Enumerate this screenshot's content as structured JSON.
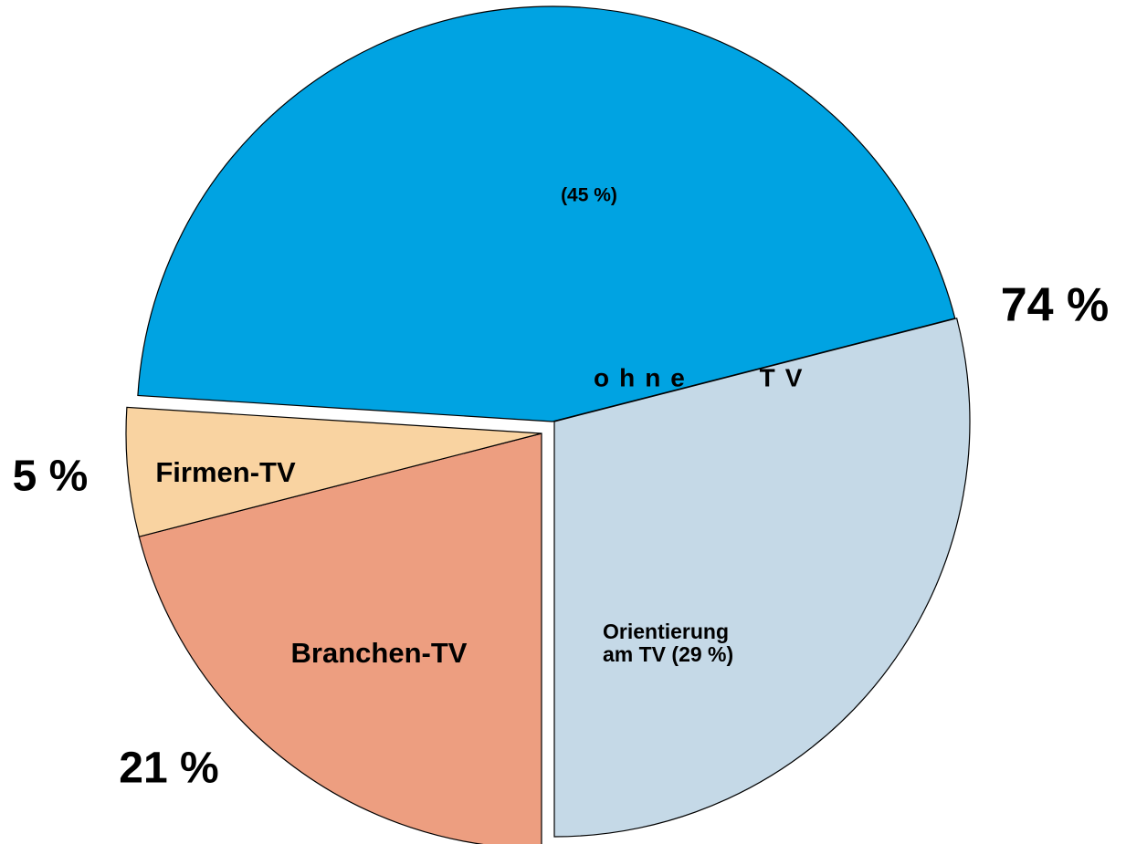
{
  "chart_data": {
    "type": "pie",
    "categories": [
      null,
      "Orientierung am TV (29 %)",
      "Branchen-TV",
      "Firmen-TV"
    ],
    "values": [
      45,
      29,
      21,
      5
    ],
    "value_labels": [
      "(45 %)",
      null,
      "21 %",
      "5 %"
    ],
    "colors": [
      "#00a3e2",
      "#c5d9e7",
      "#ed9e80",
      "#f9d3a1"
    ],
    "group": {
      "name": "ohne TV",
      "label": "74 %"
    }
  }
}
